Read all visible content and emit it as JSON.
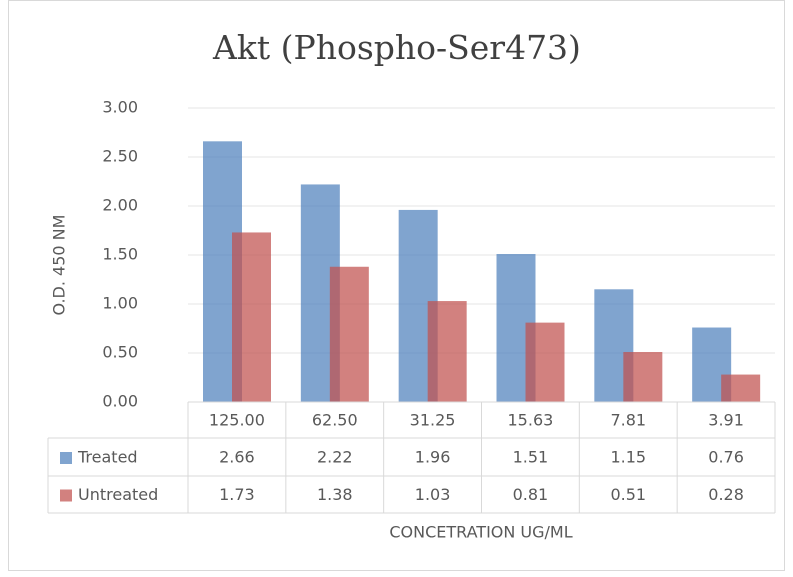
{
  "chart_data": {
    "type": "bar",
    "title": "Akt (Phospho-Ser473)",
    "x_label": "CONCETRATION  UG/ML",
    "y_label": "O.D. 450 NM",
    "categories": [
      "125.00",
      "62.50",
      "31.25",
      "15.63",
      "7.81",
      "3.91"
    ],
    "series": [
      {
        "name": "Treated",
        "color": "#4f81bd",
        "values": [
          2.66,
          2.22,
          1.96,
          1.51,
          1.15,
          0.76
        ]
      },
      {
        "name": "Untreated",
        "color": "#c0504d",
        "values": [
          1.73,
          1.38,
          1.03,
          0.81,
          0.51,
          0.28
        ]
      }
    ],
    "ylim": [
      0,
      3
    ],
    "yticks": [
      {
        "value": 0,
        "label": "0.00"
      },
      {
        "value": 0.5,
        "label": "0.50"
      },
      {
        "value": 1,
        "label": "1.00"
      },
      {
        "value": 1.5,
        "label": "1.50"
      },
      {
        "value": 2,
        "label": "2.00"
      },
      {
        "value": 2.5,
        "label": "2.50"
      },
      {
        "value": 3,
        "label": "3.00"
      }
    ],
    "grid": true,
    "data_table": true
  }
}
